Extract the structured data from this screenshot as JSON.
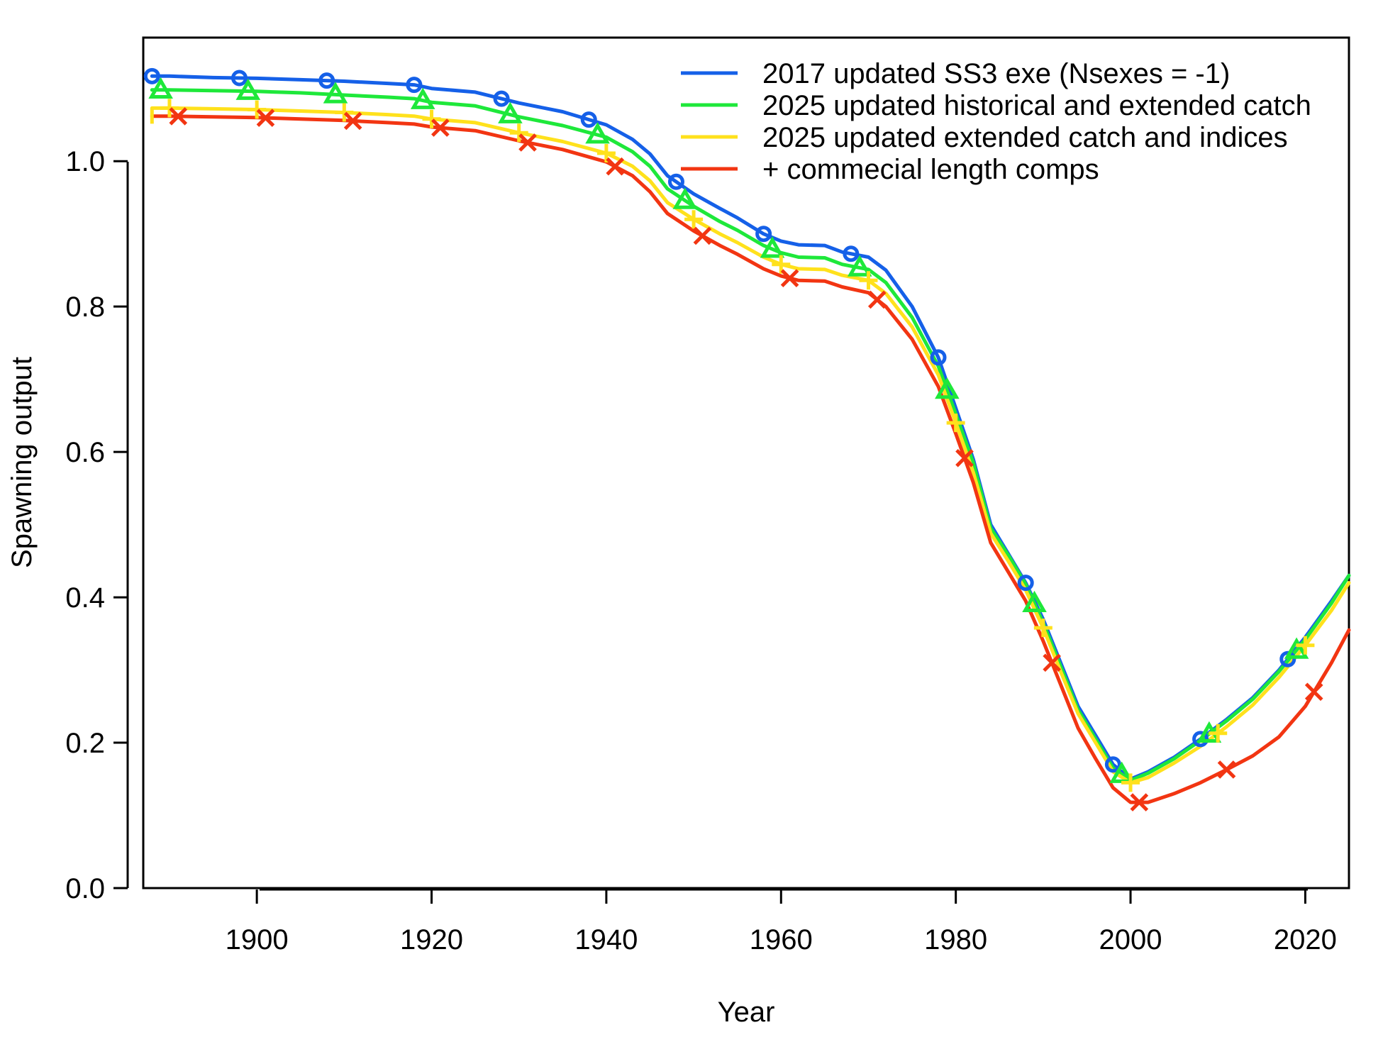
{
  "chart_data": {
    "type": "line",
    "title": "",
    "xlabel": "Year",
    "ylabel": "Spawning output",
    "xlim": [
      1887,
      2025
    ],
    "ylim": [
      0,
      1.17
    ],
    "x_ticks": [
      1900,
      1920,
      1940,
      1960,
      1980,
      2000,
      2020
    ],
    "y_ticks": [
      0.0,
      0.2,
      0.4,
      0.6,
      0.8,
      1.0
    ],
    "y_tick_labels": [
      "0.0",
      "0.2",
      "0.4",
      "0.6",
      "0.8",
      "1.0"
    ],
    "grid": false,
    "legend_position": "top-right",
    "x": [
      1888,
      1890,
      1895,
      1900,
      1905,
      1910,
      1915,
      1918,
      1920,
      1925,
      1930,
      1935,
      1940,
      1943,
      1945,
      1947,
      1950,
      1953,
      1955,
      1958,
      1960,
      1962,
      1965,
      1967,
      1970,
      1972,
      1975,
      1978,
      1980,
      1982,
      1984,
      1986,
      1988,
      1990,
      1992,
      1994,
      1996,
      1998,
      2000,
      2002,
      2005,
      2008,
      2011,
      2014,
      2017,
      2020,
      2023,
      2025
    ],
    "series": [
      {
        "name": "2017 updated SS3 exe (Nsexes = -1)",
        "color": "#1560e8",
        "marker": "circle",
        "marker_offset": 0,
        "values": [
          1.117,
          1.117,
          1.115,
          1.114,
          1.112,
          1.11,
          1.107,
          1.105,
          1.1,
          1.095,
          1.08,
          1.068,
          1.05,
          1.03,
          1.01,
          0.98,
          0.955,
          0.935,
          0.922,
          0.9,
          0.89,
          0.885,
          0.884,
          0.875,
          0.868,
          0.85,
          0.8,
          0.73,
          0.66,
          0.59,
          0.5,
          0.46,
          0.42,
          0.37,
          0.31,
          0.25,
          0.21,
          0.17,
          0.15,
          0.16,
          0.18,
          0.205,
          0.232,
          0.262,
          0.3,
          0.345,
          0.395,
          0.43
        ]
      },
      {
        "name": "2025 updated historical and extended catch",
        "color": "#1ee83a",
        "marker": "triangle",
        "marker_offset": 1,
        "values": [
          1.098,
          1.098,
          1.097,
          1.096,
          1.094,
          1.091,
          1.088,
          1.086,
          1.081,
          1.076,
          1.061,
          1.049,
          1.033,
          1.013,
          0.993,
          0.962,
          0.938,
          0.917,
          0.905,
          0.884,
          0.874,
          0.868,
          0.867,
          0.858,
          0.851,
          0.833,
          0.785,
          0.718,
          0.652,
          0.585,
          0.495,
          0.458,
          0.418,
          0.365,
          0.305,
          0.245,
          0.205,
          0.165,
          0.148,
          0.158,
          0.178,
          0.203,
          0.23,
          0.26,
          0.298,
          0.342,
          0.392,
          0.43
        ]
      },
      {
        "name": "2025 updated extended catch and indices",
        "color": "#ffe11c",
        "marker": "plus",
        "marker_offset": 2,
        "values": [
          1.073,
          1.073,
          1.072,
          1.071,
          1.069,
          1.067,
          1.064,
          1.062,
          1.058,
          1.053,
          1.039,
          1.027,
          1.011,
          0.993,
          0.973,
          0.943,
          0.92,
          0.9,
          0.888,
          0.868,
          0.858,
          0.852,
          0.851,
          0.843,
          0.836,
          0.818,
          0.772,
          0.706,
          0.64,
          0.572,
          0.488,
          0.45,
          0.41,
          0.358,
          0.298,
          0.24,
          0.2,
          0.16,
          0.145,
          0.152,
          0.172,
          0.195,
          0.222,
          0.252,
          0.29,
          0.334,
          0.382,
          0.42
        ]
      },
      {
        "name": "+ commecial length comps",
        "color": "#f23512",
        "marker": "x",
        "marker_offset": 3,
        "values": [
          1.062,
          1.062,
          1.061,
          1.06,
          1.058,
          1.056,
          1.053,
          1.051,
          1.047,
          1.042,
          1.028,
          1.016,
          0.999,
          0.98,
          0.958,
          0.928,
          0.904,
          0.884,
          0.872,
          0.852,
          0.842,
          0.836,
          0.835,
          0.827,
          0.819,
          0.8,
          0.755,
          0.69,
          0.625,
          0.558,
          0.475,
          0.435,
          0.395,
          0.34,
          0.28,
          0.22,
          0.178,
          0.138,
          0.118,
          0.118,
          0.13,
          0.145,
          0.163,
          0.182,
          0.208,
          0.25,
          0.31,
          0.355
        ]
      }
    ]
  }
}
